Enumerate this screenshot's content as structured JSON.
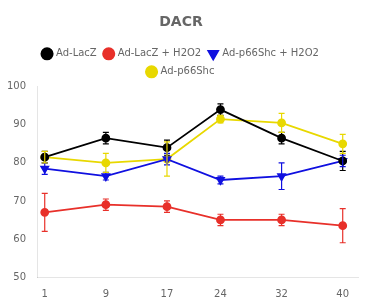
{
  "chart_data": {
    "type": "line",
    "title": "DACR",
    "x": [
      1,
      9,
      17,
      24,
      32,
      40
    ],
    "series": [
      {
        "name": "Ad-LacZ",
        "color": "#000000",
        "marker": "circle",
        "values": [
          81.5,
          86.5,
          84.0,
          94.0,
          86.5,
          80.5
        ],
        "yerr": [
          1.5,
          1.5,
          2.0,
          1.5,
          1.5,
          2.5
        ]
      },
      {
        "name": "Ad-LacZ + H2O2",
        "color": "#e8302a",
        "marker": "circle",
        "values": [
          67.0,
          69.0,
          68.5,
          65.0,
          65.0,
          63.5
        ],
        "yerr": [
          5.0,
          1.5,
          1.5,
          1.5,
          1.5,
          4.5
        ]
      },
      {
        "name": "Ad-p66Shc + H2O2",
        "color": "#1010e0",
        "marker": "triangle_down",
        "values": [
          78.5,
          76.5,
          81.0,
          75.5,
          76.5,
          80.5
        ],
        "yerr": [
          1.5,
          1.0,
          1.5,
          1.0,
          3.5,
          1.5
        ]
      },
      {
        "name": "Ad-p66Shc",
        "color": "#e8d800",
        "marker": "circle",
        "values": [
          81.5,
          80.0,
          81.0,
          91.5,
          90.5,
          85.0
        ],
        "yerr": [
          1.5,
          2.5,
          4.5,
          1.0,
          2.5,
          2.5
        ]
      }
    ],
    "xlim": [
      0,
      42
    ],
    "xticks": [
      1,
      9,
      17,
      24,
      32,
      40
    ],
    "ylim": [
      50,
      100
    ],
    "yticks": [
      50,
      60,
      70,
      80,
      90,
      100
    ],
    "grid": false,
    "legend": "top"
  }
}
